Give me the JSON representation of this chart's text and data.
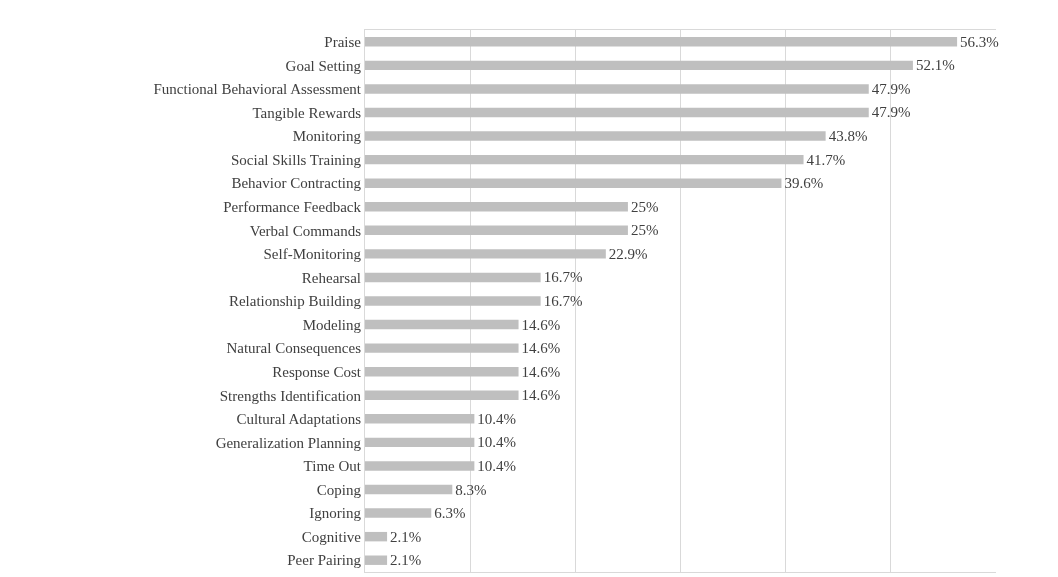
{
  "chart_data": {
    "type": "bar",
    "orientation": "horizontal",
    "categories": [
      "Praise",
      "Goal Setting",
      "Functional Behavioral Assessment",
      "Tangible Rewards",
      "Monitoring",
      "Social Skills Training",
      "Behavior Contracting",
      "Performance Feedback",
      "Verbal Commands",
      "Self-Monitoring",
      "Rehearsal",
      "Relationship Building",
      "Modeling",
      "Natural Consequences",
      "Response Cost",
      "Strengths Identification",
      "Cultural Adaptations",
      "Generalization Planning",
      "Time Out",
      "Coping",
      "Ignoring",
      "Cognitive",
      "Peer Pairing"
    ],
    "values": [
      56.3,
      52.1,
      47.9,
      47.9,
      43.8,
      41.7,
      39.6,
      25,
      25,
      22.9,
      16.7,
      16.7,
      14.6,
      14.6,
      14.6,
      14.6,
      10.4,
      10.4,
      10.4,
      8.3,
      6.3,
      2.1,
      2.1
    ],
    "value_labels": [
      "56.3%",
      "52.1%",
      "47.9%",
      "47.9%",
      "43.8%",
      "41.7%",
      "39.6%",
      "25%",
      "25%",
      "22.9%",
      "16.7%",
      "16.7%",
      "14.6%",
      "14.6%",
      "14.6%",
      "14.6%",
      "10.4%",
      "10.4%",
      "10.4%",
      "8.3%",
      "6.3%",
      "2.1%",
      "2.1%"
    ],
    "color": "#bfbfbf",
    "xlim": [
      0,
      60
    ],
    "xticks": [
      {
        "value": 0,
        "label": null
      },
      {
        "value": 10,
        "label": null
      },
      {
        "value": 20,
        "label": null
      },
      {
        "value": 30,
        "label": null
      },
      {
        "value": 40,
        "label": null
      },
      {
        "value": 50,
        "label": null
      }
    ],
    "grid": "x",
    "tick_labels": "y"
  }
}
